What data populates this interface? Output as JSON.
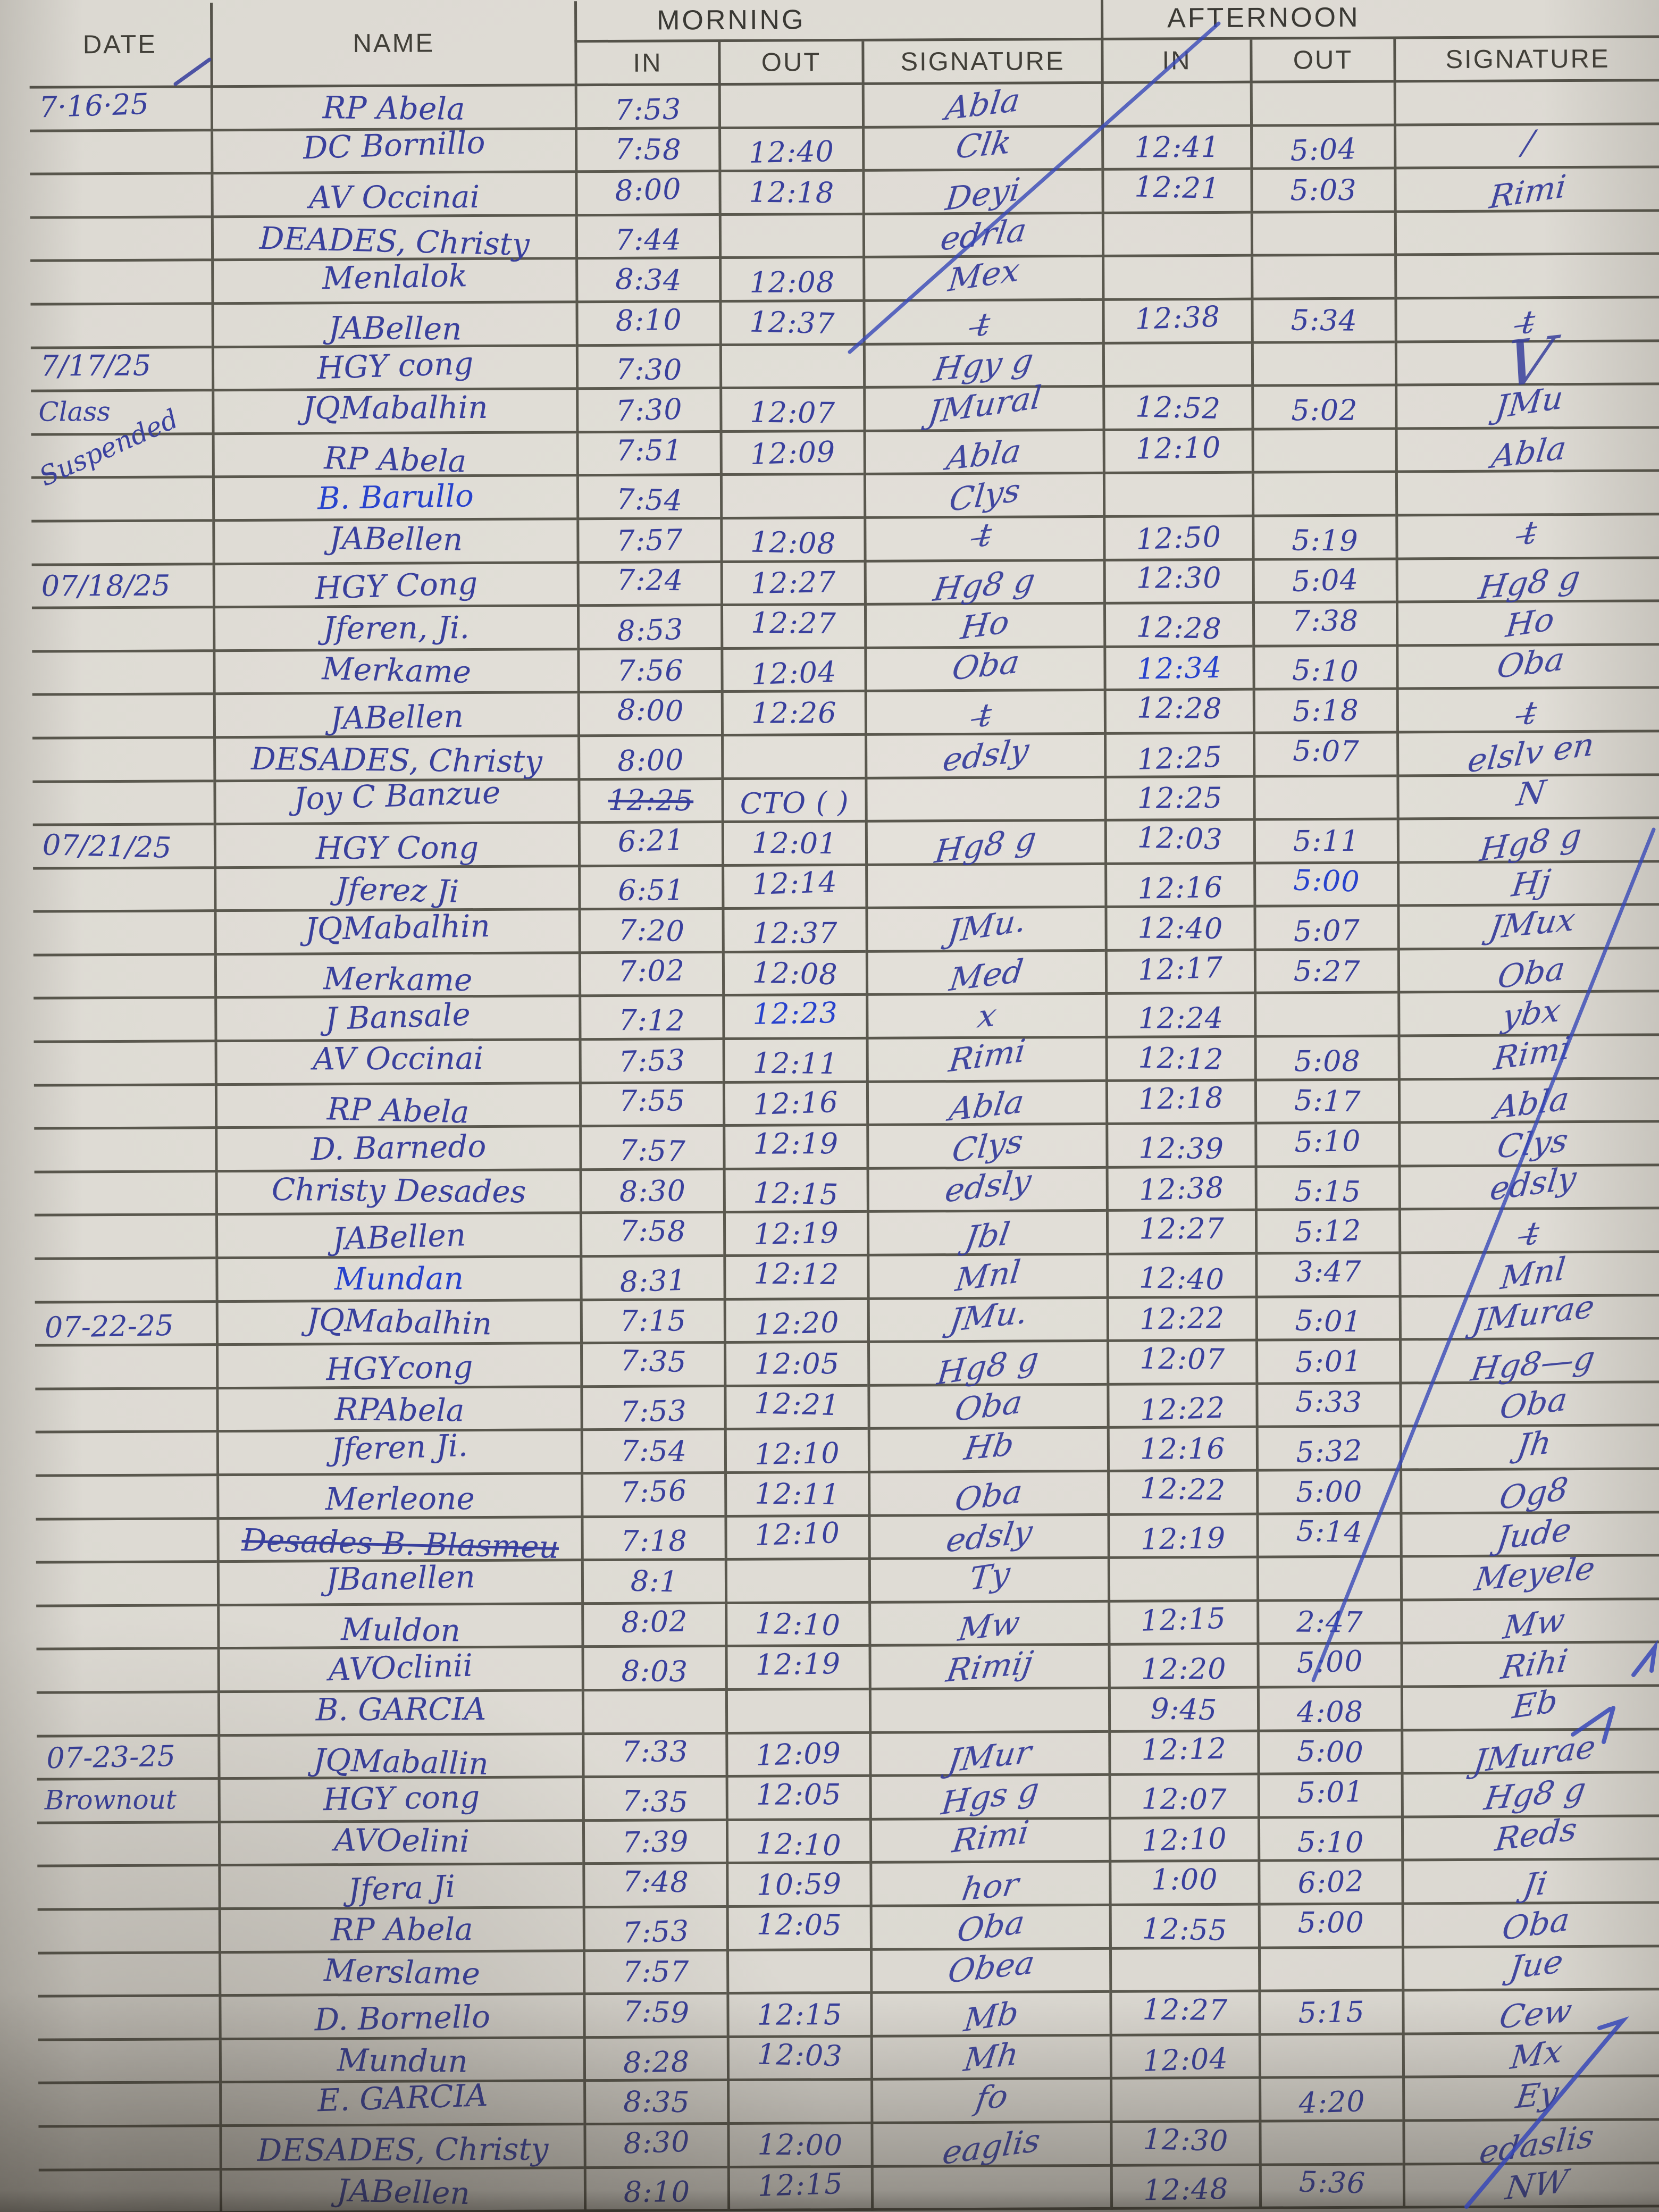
{
  "header": {
    "date": "DATE",
    "name": "NAME",
    "morning": "MORNING",
    "afternoon": "AFTERNOON",
    "in": "IN",
    "out": "OUT",
    "signature": "SIGNATURE"
  },
  "ink": {
    "primary": "#39409d",
    "bright": "#2742cd",
    "grid": "#5a584e",
    "paper": "#dcd9d2"
  },
  "table": {
    "rows": [
      {
        "date": "7·16·25",
        "name": "RP Abela",
        "m_in": "7:53",
        "m_sig": "Abla"
      },
      {
        "name": "DC Bornillo",
        "m_in": "7:58",
        "m_out": "12:40",
        "m_sig": "Clk",
        "a_in": "12:41",
        "a_out": "5:04",
        "a_sig": "/"
      },
      {
        "name": "AV Occinai",
        "m_in": "8:00",
        "m_out": "12:18",
        "m_sig": "Deyi",
        "a_in": "12:21",
        "a_out": "5:03",
        "a_sig": "Rimi"
      },
      {
        "name": "DEADES, Christy",
        "m_in": "7:44",
        "m_sig": "edrla"
      },
      {
        "name": "Menlalok",
        "m_in": "8:34",
        "m_out": "12:08",
        "m_sig": "Mex"
      },
      {
        "name": "JABellen",
        "m_in": "8:10",
        "m_out": "12:37",
        "m_sig": "t̶",
        "a_in": "12:38",
        "a_out": "5:34",
        "a_sig": "t̶"
      },
      {
        "date": "7/17/25",
        "name": "HGY cong",
        "m_in": "7:30",
        "m_sig": "Hgy g",
        "a_sig": "V",
        "big": [
          "a_sig"
        ]
      },
      {
        "note": "Class",
        "name": "JQMabalhin",
        "m_in": "7:30",
        "m_out": "12:07",
        "m_sig": "JMural",
        "a_in": "12:52",
        "a_out": "5:02",
        "a_sig": "JMu"
      },
      {
        "note": "Suspended",
        "note_tilt": true,
        "name": "RP Abela",
        "m_in": "7:51",
        "m_out": "12:09",
        "m_sig": "Abla",
        "a_in": "12:10",
        "a_sig": "Abla"
      },
      {
        "name": "B. Barullo",
        "bright": [
          "name"
        ],
        "m_in": "7:54",
        "m_sig": "Clys"
      },
      {
        "name": "JABellen",
        "m_in": "7:57",
        "m_out": "12:08",
        "m_sig": "t̶",
        "a_in": "12:50",
        "a_out": "5:19",
        "a_sig": "t̶"
      },
      {
        "date": "07/18/25",
        "name": "HGY Cong",
        "m_in": "7:24",
        "m_out": "12:27",
        "m_sig": "Hg8 g",
        "a_in": "12:30",
        "a_out": "5:04",
        "a_sig": "Hg8 g"
      },
      {
        "name": "Jferen, Ji.",
        "m_in": "8:53",
        "m_out": "12:27",
        "m_sig": "Ho",
        "a_in": "12:28",
        "a_out": "7:38",
        "a_sig": "Ho"
      },
      {
        "name": "Merkame",
        "m_in": "7:56",
        "m_out": "12:04",
        "m_sig": "Oba",
        "a_in": "12:34",
        "a_out": "5:10",
        "a_sig": "Oba",
        "bright": [
          "a_in"
        ]
      },
      {
        "name": "JABellen",
        "m_in": "8:00",
        "m_out": "12:26",
        "m_sig": "t̶",
        "a_in": "12:28",
        "a_out": "5:18",
        "a_sig": "t̶"
      },
      {
        "name": "DESADES, Christy",
        "m_in": "8:00",
        "m_sig": "edsly",
        "a_in": "12:25",
        "a_out": "5:07",
        "a_sig": "elslv en"
      },
      {
        "name": "Joy C Banzue",
        "m_in": "12:25",
        "struck": [
          "m_in"
        ],
        "m_out": "CTO ( )",
        "a_in": "12:25",
        "a_sig": "N"
      },
      {
        "date": "07/21/25",
        "name": "HGY Cong",
        "m_in": "6:21",
        "m_out": "12:01",
        "m_sig": "Hg8 g",
        "a_in": "12:03",
        "a_out": "5:11",
        "a_sig": "Hg8 g"
      },
      {
        "name": "Jferez Ji",
        "m_in": "6:51",
        "m_out": "12:14",
        "a_in": "12:16",
        "a_out": "5:00",
        "a_sig": "Hj",
        "bright": [
          "a_out"
        ]
      },
      {
        "name": "JQMabalhin",
        "m_in": "7:20",
        "m_out": "12:37",
        "m_sig": "JMu.",
        "a_in": "12:40",
        "a_out": "5:07",
        "a_sig": "JMux"
      },
      {
        "name": "Merkame",
        "m_in": "7:02",
        "m_out": "12:08",
        "m_sig": "Med",
        "a_in": "12:17",
        "a_out": "5:27",
        "a_sig": "Oba"
      },
      {
        "name": "J Bansale",
        "m_in": "7:12",
        "m_out": "12:23",
        "m_sig": "x",
        "a_in": "12:24",
        "a_sig": "ybx",
        "bright": [
          "m_out"
        ]
      },
      {
        "name": "AV Occinai",
        "m_in": "7:53",
        "m_out": "12:11",
        "m_sig": "Rimi",
        "a_in": "12:12",
        "a_out": "5:08",
        "a_sig": "Rimi"
      },
      {
        "name": "RP Abela",
        "m_in": "7:55",
        "m_out": "12:16",
        "m_sig": "Abla",
        "a_in": "12:18",
        "a_out": "5:17",
        "a_sig": "Abla"
      },
      {
        "name": "D. Barnedo",
        "m_in": "7:57",
        "m_out": "12:19",
        "m_sig": "Clys",
        "a_in": "12:39",
        "a_out": "5:10",
        "a_sig": "Clys"
      },
      {
        "name": "Christy Desades",
        "m_in": "8:30",
        "m_out": "12:15",
        "m_sig": "edsly",
        "a_in": "12:38",
        "a_out": "5:15",
        "a_sig": "edsly"
      },
      {
        "name": "JABellen",
        "m_in": "7:58",
        "m_out": "12:19",
        "m_sig": "Jbl",
        "a_in": "12:27",
        "a_out": "5:12",
        "a_sig": "t̶"
      },
      {
        "name": "Mundan",
        "bright": [
          "name"
        ],
        "m_in": "8:31",
        "m_out": "12:12",
        "m_sig": "Mnl",
        "a_in": "12:40",
        "a_out": "3:47",
        "a_sig": "Mnl"
      },
      {
        "date": "07-22-25",
        "name": "JQMabalhin",
        "m_in": "7:15",
        "m_out": "12:20",
        "m_sig": "JMu.",
        "a_in": "12:22",
        "a_out": "5:01",
        "a_sig": "JMurae"
      },
      {
        "name": "HGYcong",
        "m_in": "7:35",
        "m_out": "12:05",
        "m_sig": "Hg8 g",
        "a_in": "12:07",
        "a_out": "5:01",
        "a_sig": "Hg8—g"
      },
      {
        "name": "RPAbela",
        "m_in": "7:53",
        "m_out": "12:21",
        "m_sig": "Oba",
        "a_in": "12:22",
        "a_out": "5:33",
        "a_sig": "Oba"
      },
      {
        "name": "Jferen Ji.",
        "m_in": "7:54",
        "m_out": "12:10",
        "m_sig": "Hb",
        "a_in": "12:16",
        "a_out": "5:32",
        "a_sig": "Jh"
      },
      {
        "name": "Merleone",
        "m_in": "7:56",
        "m_out": "12:11",
        "m_sig": "Oba",
        "a_in": "12:22",
        "a_out": "5:00",
        "a_sig": "Og8"
      },
      {
        "name": "Desades B. Blasmeu",
        "struck": [
          "name"
        ],
        "m_in": "7:18",
        "m_out": "12:10",
        "m_sig": "edsly",
        "a_in": "12:19",
        "a_out": "5:14",
        "a_sig": "Jude"
      },
      {
        "name": "JBanellen",
        "m_in": "8:1",
        "m_sig": "Ty",
        "a_sig": "Meyele"
      },
      {
        "name": "Muldon",
        "m_in": "8:02",
        "m_out": "12:10",
        "m_sig": "Mw",
        "a_in": "12:15",
        "a_out": "2:47",
        "a_sig": "Mw"
      },
      {
        "name": "AVOclinii",
        "m_in": "8:03",
        "m_out": "12:19",
        "m_sig": "Rimij",
        "a_in": "12:20",
        "a_out": "5:00",
        "a_sig": "Rihi"
      },
      {
        "name": "B. GARCIA",
        "a_in": "9:45",
        "a_out": "4:08",
        "a_sig": "Eb"
      },
      {
        "date": "07-23-25",
        "name": "JQMaballin",
        "m_in": "7:33",
        "m_out": "12:09",
        "m_sig": "JMur",
        "a_in": "12:12",
        "a_out": "5:00",
        "a_sig": "JMurae"
      },
      {
        "note": "Brownout",
        "name": "HGY cong",
        "m_in": "7:35",
        "m_out": "12:05",
        "m_sig": "Hgs g",
        "a_in": "12:07",
        "a_out": "5:01",
        "a_sig": "Hg8 g"
      },
      {
        "name": "AVOelini",
        "m_in": "7:39",
        "m_out": "12:10",
        "m_sig": "Rimi",
        "a_in": "12:10",
        "a_out": "5:10",
        "a_sig": "Reds"
      },
      {
        "name": "Jfera Ji",
        "m_in": "7:48",
        "m_out": "10:59",
        "m_sig": "hor",
        "a_in": "1:00",
        "a_out": "6:02",
        "a_sig": "Ji"
      },
      {
        "name": "RP Abela",
        "m_in": "7:53",
        "m_out": "12:05",
        "m_sig": "Oba",
        "a_in": "12:55",
        "a_out": "5:00",
        "a_sig": "Oba"
      },
      {
        "name": "Merslame",
        "m_in": "7:57",
        "m_sig": "Obea",
        "a_sig": "Jue"
      },
      {
        "name": "D. Bornello",
        "m_in": "7:59",
        "m_out": "12:15",
        "m_sig": "Mb",
        "a_in": "12:27",
        "a_out": "5:15",
        "a_sig": "Cew"
      },
      {
        "name": "Mundun",
        "m_in": "8:28",
        "m_out": "12:03",
        "m_sig": "Mh",
        "a_in": "12:04",
        "a_sig": "Mx"
      },
      {
        "name": "E. GARCIA",
        "m_in": "8:35",
        "m_sig": "fo",
        "a_out": "4:20",
        "a_sig": "Ey"
      },
      {
        "name": "DESADES, Christy",
        "m_in": "8:30",
        "m_out": "12:00",
        "m_sig": "eaglis",
        "a_in": "12:30",
        "a_sig": "edaslis"
      },
      {
        "name": "JABellen",
        "m_in": "8:10",
        "m_out": "12:15",
        "a_in": "12:48",
        "a_out": "5:36",
        "a_sig": "NW"
      }
    ]
  }
}
